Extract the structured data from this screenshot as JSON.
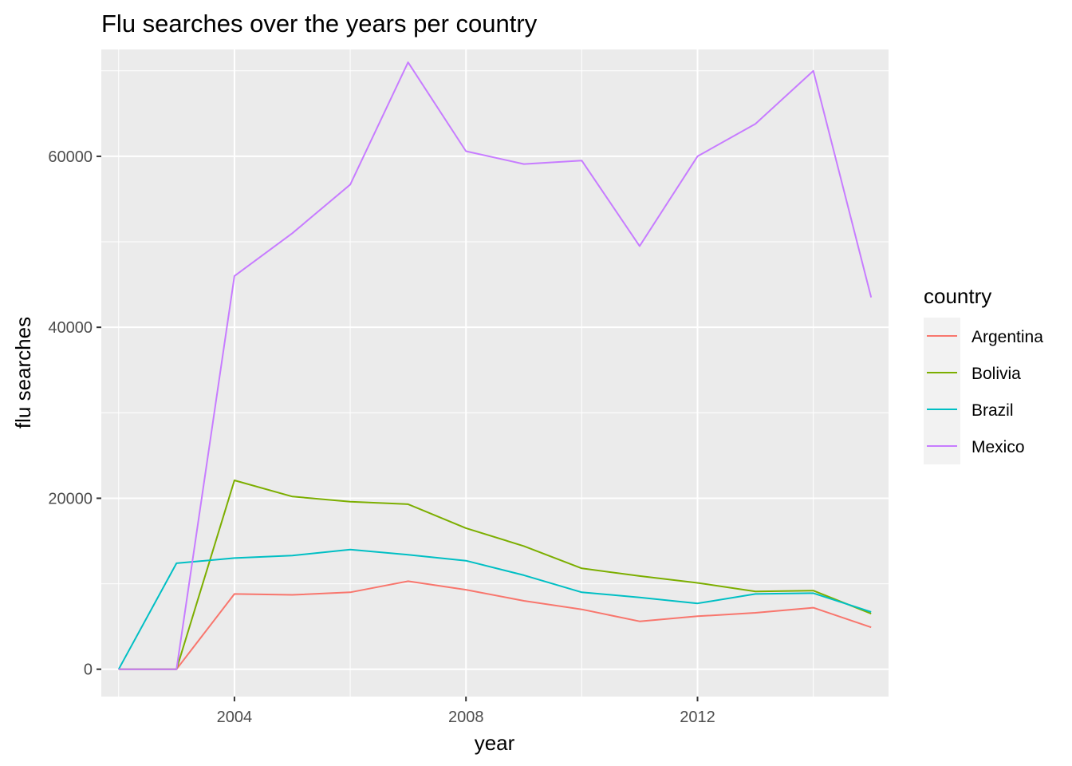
{
  "chart_data": {
    "type": "line",
    "title": "Flu searches over the years per country",
    "xlabel": "year",
    "ylabel": "flu searches",
    "xlim": [
      2001.7,
      2015.3
    ],
    "ylim": [
      -3200,
      72500
    ],
    "x_ticks": [
      2004,
      2008,
      2012
    ],
    "y_ticks": [
      0,
      20000,
      40000,
      60000
    ],
    "x_tick_labels": [
      "2004",
      "2008",
      "2012"
    ],
    "y_tick_labels": [
      "0",
      "20000",
      "40000",
      "60000"
    ],
    "grid": true,
    "legend": {
      "title": "country",
      "position": "right"
    },
    "x": [
      2002,
      2003,
      2004,
      2005,
      2006,
      2007,
      2008,
      2009,
      2010,
      2011,
      2012,
      2013,
      2014,
      2015
    ],
    "series": [
      {
        "name": "Argentina",
        "color": "#F8766D",
        "values": [
          0,
          0,
          8800,
          8700,
          9000,
          10300,
          9300,
          8000,
          7000,
          5600,
          6200,
          6600,
          7200,
          4900
        ]
      },
      {
        "name": "Bolivia",
        "color": "#7CAE00",
        "values": [
          0,
          0,
          22100,
          20200,
          19600,
          19300,
          16500,
          14400,
          11800,
          10900,
          10100,
          9100,
          9200,
          6500
        ]
      },
      {
        "name": "Brazil",
        "color": "#00BFC4",
        "values": [
          0,
          12400,
          13000,
          13300,
          14000,
          13400,
          12700,
          11000,
          9000,
          8400,
          7700,
          8800,
          8900,
          6700
        ]
      },
      {
        "name": "Mexico",
        "color": "#C77CFF",
        "values": [
          0,
          0,
          46000,
          51000,
          56700,
          71000,
          60600,
          59100,
          59500,
          49500,
          60000,
          63800,
          70000,
          43500
        ]
      }
    ]
  }
}
